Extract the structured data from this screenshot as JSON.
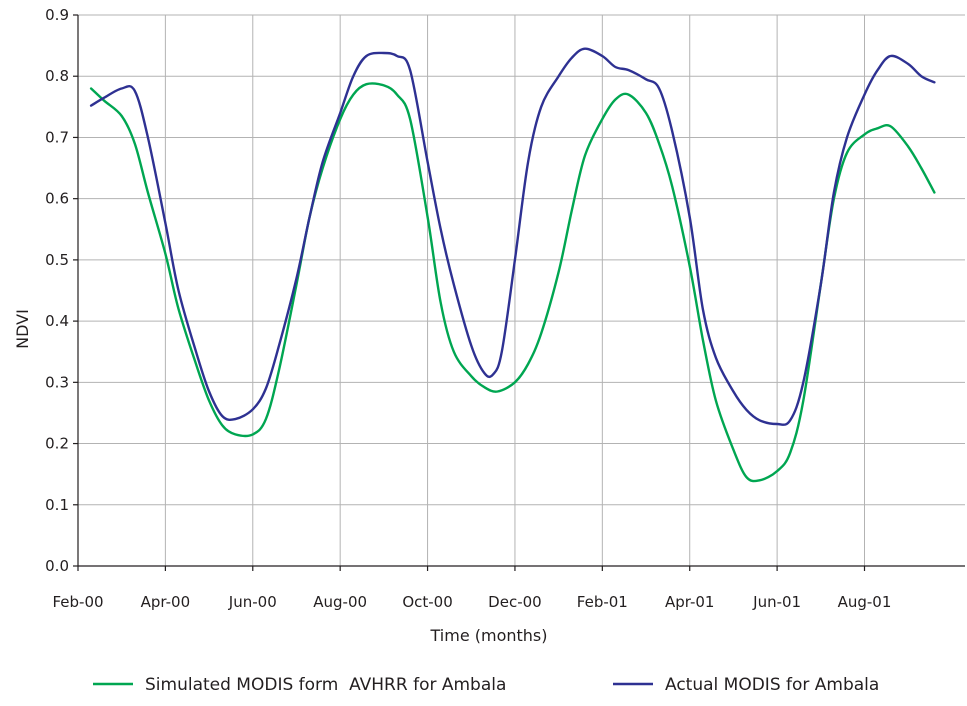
{
  "chart_data": {
    "type": "line",
    "xlabel": "Time (months)",
    "ylabel": "NDVI",
    "ylim": [
      0,
      0.9
    ],
    "yticks": [
      "0.0",
      "0.1",
      "0.2",
      "0.3",
      "0.4",
      "0.5",
      "0.6",
      "0.7",
      "0.8",
      "0.9"
    ],
    "xlim": [
      0,
      20.3
    ],
    "xticks": [
      {
        "month": 0,
        "label": "Feb-00"
      },
      {
        "month": 2,
        "label": "Apr-00"
      },
      {
        "month": 4,
        "label": "Jun-00"
      },
      {
        "month": 6,
        "label": "Aug-00"
      },
      {
        "month": 8,
        "label": "Oct-00"
      },
      {
        "month": 10,
        "label": "Dec-00"
      },
      {
        "month": 12,
        "label": "Feb-01"
      },
      {
        "month": 14,
        "label": "Apr-01"
      },
      {
        "month": 16,
        "label": "Jun-01"
      },
      {
        "month": 18,
        "label": "Aug-01"
      }
    ],
    "grid": true,
    "legend_position": "bottom",
    "series": [
      {
        "name": "Simulated MODIS form  AVHRR for Ambala",
        "color": "#00a651",
        "points": [
          [
            0.3,
            0.78
          ],
          [
            0.6,
            0.76
          ],
          [
            1.0,
            0.735
          ],
          [
            1.3,
            0.69
          ],
          [
            1.6,
            0.61
          ],
          [
            2.0,
            0.51
          ],
          [
            2.3,
            0.42
          ],
          [
            2.7,
            0.33
          ],
          [
            3.0,
            0.27
          ],
          [
            3.3,
            0.23
          ],
          [
            3.6,
            0.215
          ],
          [
            4.0,
            0.215
          ],
          [
            4.3,
            0.24
          ],
          [
            4.6,
            0.32
          ],
          [
            5.0,
            0.46
          ],
          [
            5.3,
            0.57
          ],
          [
            5.6,
            0.65
          ],
          [
            6.0,
            0.73
          ],
          [
            6.3,
            0.77
          ],
          [
            6.6,
            0.787
          ],
          [
            7.0,
            0.785
          ],
          [
            7.3,
            0.77
          ],
          [
            7.6,
            0.73
          ],
          [
            8.0,
            0.57
          ],
          [
            8.3,
            0.43
          ],
          [
            8.6,
            0.35
          ],
          [
            9.0,
            0.31
          ],
          [
            9.3,
            0.292
          ],
          [
            9.6,
            0.285
          ],
          [
            10.0,
            0.3
          ],
          [
            10.3,
            0.33
          ],
          [
            10.6,
            0.38
          ],
          [
            11.0,
            0.48
          ],
          [
            11.3,
            0.58
          ],
          [
            11.6,
            0.67
          ],
          [
            12.0,
            0.73
          ],
          [
            12.3,
            0.762
          ],
          [
            12.6,
            0.77
          ],
          [
            13.0,
            0.74
          ],
          [
            13.3,
            0.69
          ],
          [
            13.6,
            0.62
          ],
          [
            14.0,
            0.49
          ],
          [
            14.3,
            0.37
          ],
          [
            14.6,
            0.27
          ],
          [
            15.0,
            0.19
          ],
          [
            15.3,
            0.145
          ],
          [
            15.6,
            0.14
          ],
          [
            16.0,
            0.155
          ],
          [
            16.3,
            0.185
          ],
          [
            16.6,
            0.27
          ],
          [
            17.0,
            0.46
          ],
          [
            17.3,
            0.6
          ],
          [
            17.6,
            0.675
          ],
          [
            18.0,
            0.705
          ],
          [
            18.3,
            0.715
          ],
          [
            18.6,
            0.718
          ],
          [
            19.0,
            0.685
          ],
          [
            19.3,
            0.65
          ],
          [
            19.6,
            0.61
          ]
        ]
      },
      {
        "name": "Actual MODIS for Ambala",
        "color": "#2e3192",
        "points": [
          [
            0.3,
            0.752
          ],
          [
            0.6,
            0.765
          ],
          [
            1.0,
            0.78
          ],
          [
            1.3,
            0.776
          ],
          [
            1.6,
            0.7
          ],
          [
            2.0,
            0.56
          ],
          [
            2.3,
            0.45
          ],
          [
            2.7,
            0.35
          ],
          [
            3.0,
            0.285
          ],
          [
            3.3,
            0.245
          ],
          [
            3.6,
            0.24
          ],
          [
            4.0,
            0.256
          ],
          [
            4.3,
            0.29
          ],
          [
            4.6,
            0.36
          ],
          [
            5.0,
            0.47
          ],
          [
            5.3,
            0.57
          ],
          [
            5.6,
            0.66
          ],
          [
            6.0,
            0.74
          ],
          [
            6.3,
            0.8
          ],
          [
            6.6,
            0.833
          ],
          [
            7.0,
            0.838
          ],
          [
            7.3,
            0.833
          ],
          [
            7.6,
            0.81
          ],
          [
            8.0,
            0.66
          ],
          [
            8.3,
            0.55
          ],
          [
            8.6,
            0.46
          ],
          [
            9.0,
            0.36
          ],
          [
            9.3,
            0.315
          ],
          [
            9.5,
            0.313
          ],
          [
            9.7,
            0.35
          ],
          [
            10.0,
            0.5
          ],
          [
            10.3,
            0.66
          ],
          [
            10.6,
            0.75
          ],
          [
            11.0,
            0.8
          ],
          [
            11.3,
            0.83
          ],
          [
            11.6,
            0.845
          ],
          [
            12.0,
            0.833
          ],
          [
            12.3,
            0.815
          ],
          [
            12.6,
            0.81
          ],
          [
            13.0,
            0.795
          ],
          [
            13.3,
            0.78
          ],
          [
            13.6,
            0.71
          ],
          [
            14.0,
            0.57
          ],
          [
            14.3,
            0.42
          ],
          [
            14.6,
            0.34
          ],
          [
            15.0,
            0.285
          ],
          [
            15.3,
            0.255
          ],
          [
            15.6,
            0.238
          ],
          [
            16.0,
            0.232
          ],
          [
            16.3,
            0.238
          ],
          [
            16.6,
            0.3
          ],
          [
            17.0,
            0.46
          ],
          [
            17.3,
            0.61
          ],
          [
            17.6,
            0.7
          ],
          [
            18.0,
            0.77
          ],
          [
            18.3,
            0.81
          ],
          [
            18.6,
            0.833
          ],
          [
            19.0,
            0.82
          ],
          [
            19.3,
            0.8
          ],
          [
            19.6,
            0.79
          ]
        ]
      }
    ]
  }
}
